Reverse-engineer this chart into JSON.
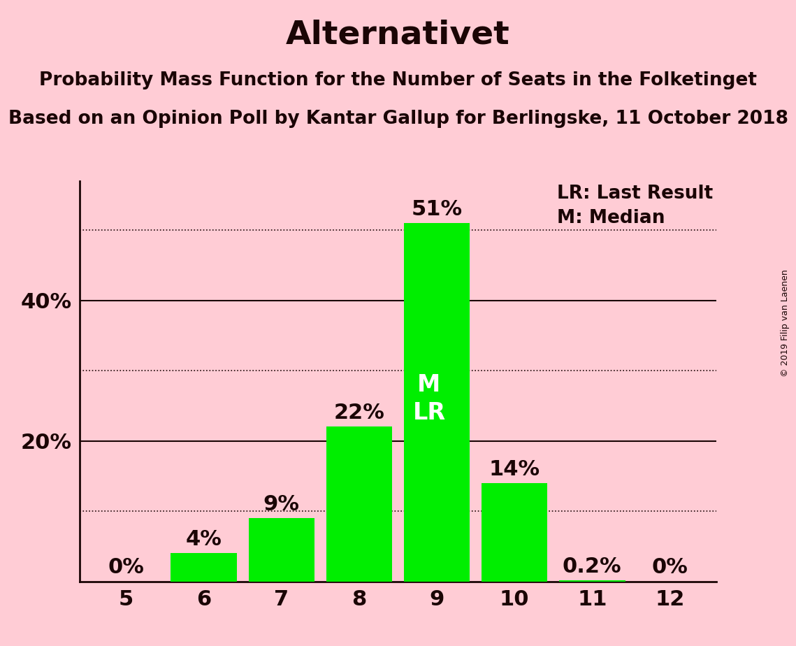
{
  "title": "Alternativet",
  "subtitle1": "Probability Mass Function for the Number of Seats in the Folketinget",
  "subtitle2": "Based on an Opinion Poll by Kantar Gallup for Berlingske, 11 October 2018",
  "copyright": "© 2019 Filip van Laenen",
  "categories": [
    5,
    6,
    7,
    8,
    9,
    10,
    11,
    12
  ],
  "values": [
    0.0,
    4.0,
    9.0,
    22.0,
    51.0,
    14.0,
    0.2,
    0.0
  ],
  "labels": [
    "0%",
    "4%",
    "9%",
    "22%",
    "51%",
    "14%",
    "0.2%",
    "0%"
  ],
  "bar_color": "#00ee00",
  "bg_color": "#ffccd5",
  "text_color": "#1a0505",
  "median_seat": 9,
  "last_result_seat": 9,
  "median_label": "M",
  "last_result_label": "LR",
  "legend_lr": "LR: Last Result",
  "legend_m": "M: Median",
  "ylim": [
    0,
    57
  ],
  "solid_hlines": [
    20,
    40
  ],
  "dotted_hlines": [
    10,
    30,
    50
  ],
  "ytick_positions": [
    20,
    40
  ],
  "ytick_labels": [
    "20%",
    "40%"
  ],
  "title_fontsize": 34,
  "subtitle_fontsize": 19,
  "tick_fontsize": 22,
  "bar_label_fontsize": 22,
  "legend_fontsize": 19,
  "inner_label_fontsize": 24,
  "copyright_fontsize": 9
}
